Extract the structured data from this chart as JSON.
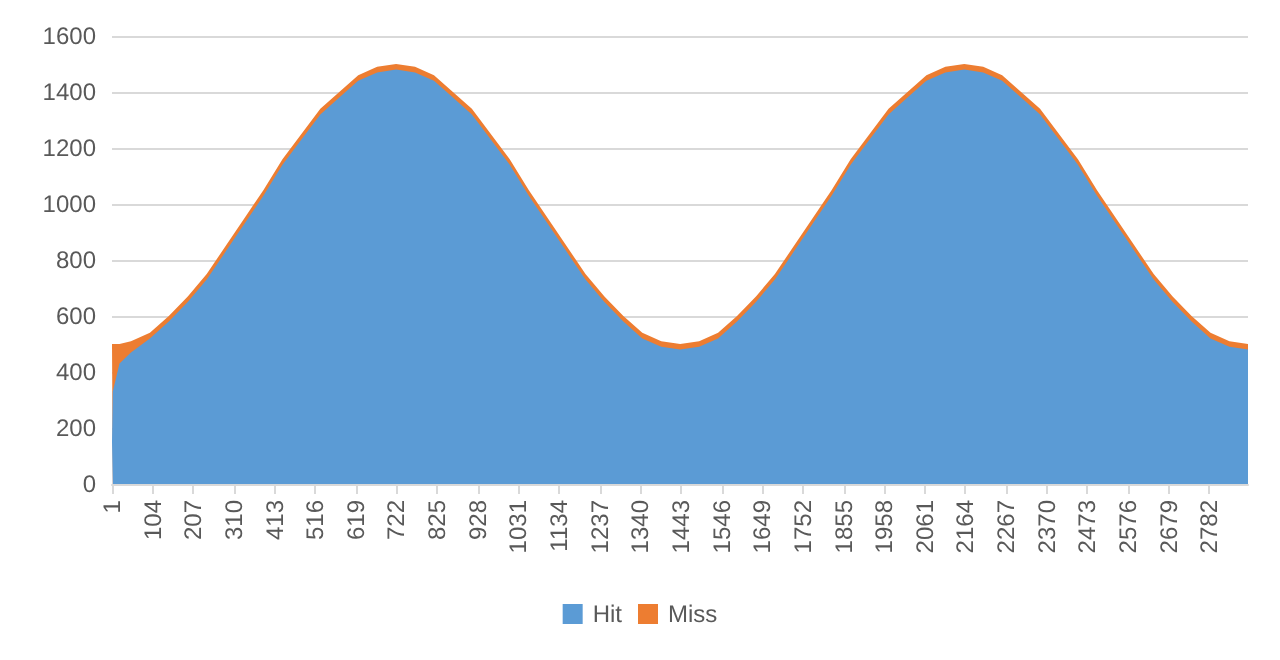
{
  "chart_data": {
    "type": "area",
    "stacked": true,
    "grid": "y",
    "legend": "bottom",
    "x": [
      1,
      3,
      20,
      49,
      97,
      145,
      193,
      241,
      289,
      337,
      385,
      433,
      481,
      529,
      577,
      625,
      673,
      721,
      769,
      817,
      865,
      913,
      961,
      1009,
      1057,
      1105,
      1153,
      1201,
      1249,
      1297,
      1345,
      1393,
      1441,
      1489,
      1537,
      1585,
      1633,
      1681,
      1729,
      1777,
      1825,
      1873,
      1921,
      1969,
      2017,
      2065,
      2113,
      2161,
      2209,
      2257,
      2305,
      2353,
      2401,
      2449,
      2497,
      2545,
      2593,
      2641,
      2689,
      2737,
      2785,
      2833,
      2880
    ],
    "xlim": [
      1,
      2880
    ],
    "xticks": [
      1,
      104,
      207,
      310,
      413,
      516,
      619,
      722,
      825,
      928,
      1031,
      1134,
      1237,
      1340,
      1443,
      1546,
      1649,
      1752,
      1855,
      1958,
      2061,
      2164,
      2267,
      2370,
      2473,
      2576,
      2679,
      2782
    ],
    "ylim": [
      0,
      1600
    ],
    "yticks": [
      0,
      200,
      400,
      600,
      800,
      1000,
      1200,
      1400,
      1600
    ],
    "series": [
      {
        "name": "Hit",
        "color": "#5b9bd5",
        "values": [
          150,
          330,
          430,
          470,
          520,
          580,
          650,
          730,
          830,
          930,
          1030,
          1140,
          1230,
          1320,
          1380,
          1440,
          1470,
          1480,
          1470,
          1440,
          1380,
          1320,
          1230,
          1140,
          1030,
          930,
          830,
          730,
          650,
          580,
          520,
          490,
          480,
          490,
          520,
          580,
          650,
          730,
          830,
          930,
          1030,
          1140,
          1230,
          1320,
          1380,
          1440,
          1470,
          1480,
          1470,
          1440,
          1380,
          1320,
          1230,
          1140,
          1030,
          930,
          830,
          730,
          650,
          580,
          520,
          490,
          480
        ]
      },
      {
        "name": "Miss",
        "color": "#ed7d31",
        "values": [
          350,
          170,
          70,
          40,
          20,
          20,
          20,
          20,
          20,
          20,
          20,
          20,
          20,
          20,
          20,
          20,
          20,
          20,
          20,
          20,
          20,
          20,
          20,
          20,
          20,
          20,
          20,
          20,
          20,
          20,
          20,
          20,
          20,
          20,
          20,
          20,
          20,
          20,
          20,
          20,
          20,
          20,
          20,
          20,
          20,
          20,
          20,
          20,
          20,
          20,
          20,
          20,
          20,
          20,
          20,
          20,
          20,
          20,
          20,
          20,
          20,
          20,
          20
        ]
      }
    ]
  }
}
